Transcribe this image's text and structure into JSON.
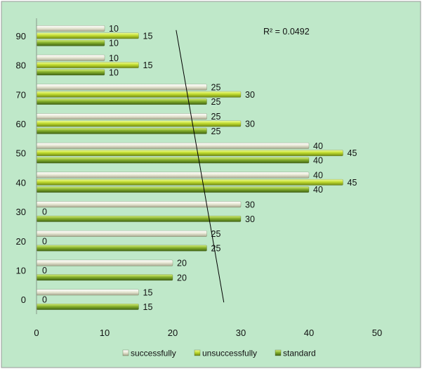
{
  "chart_data": {
    "type": "bar",
    "orientation": "horizontal",
    "categories": [
      "0",
      "10",
      "20",
      "30",
      "40",
      "50",
      "60",
      "70",
      "80",
      "90"
    ],
    "series": [
      {
        "name": "successfully",
        "values": [
          15,
          20,
          25,
          30,
          40,
          40,
          25,
          25,
          10,
          10
        ],
        "color": "#e6e6d0"
      },
      {
        "name": "unsuccessfully",
        "values": [
          0,
          0,
          0,
          0,
          45,
          45,
          30,
          30,
          15,
          15
        ],
        "color": "#b9d42c"
      },
      {
        "name": "standard",
        "values": [
          15,
          20,
          25,
          30,
          40,
          40,
          25,
          25,
          10,
          10
        ],
        "color": "#7ea829"
      }
    ],
    "x_ticks": [
      "0",
      "10",
      "20",
      "30",
      "40",
      "50"
    ],
    "xlim": [
      0,
      50
    ],
    "trendline": {
      "label": "R² = 0.0492",
      "x_start": 20.5,
      "x_end": 27.5,
      "y_start": 90,
      "y_end": 0
    },
    "legend_position": "bottom",
    "grid": false,
    "plot_background": "#bfe8c9"
  }
}
